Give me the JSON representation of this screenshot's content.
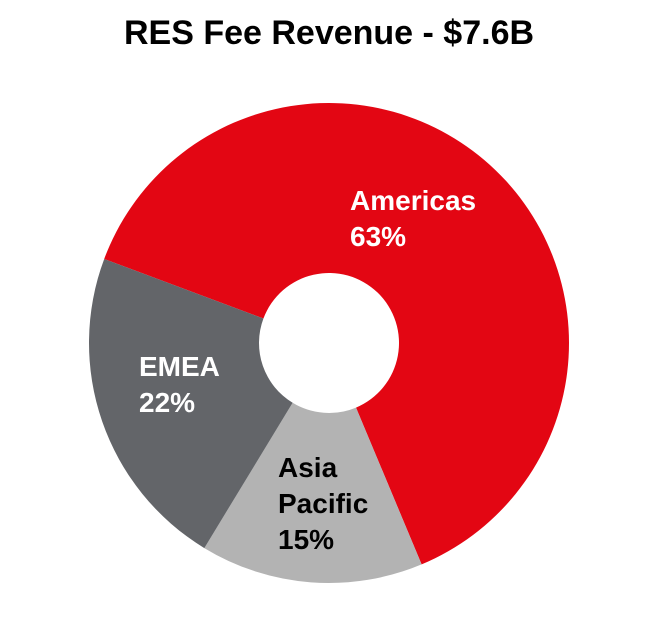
{
  "chart_data": {
    "type": "pie",
    "title": "RES Fee Revenue - $7.6B",
    "slices": [
      {
        "name": "Americas",
        "value": 63,
        "label_lines": [
          "Americas",
          "63%"
        ],
        "color": "#e30613",
        "label_color": "#ffffff"
      },
      {
        "name": "Asia Pacific",
        "value": 15,
        "label_lines": [
          "Asia",
          "Pacific",
          "15%"
        ],
        "color": "#b3b3b3",
        "label_color": "#000000"
      },
      {
        "name": "EMEA",
        "value": 22,
        "label_lines": [
          "EMEA",
          "22%"
        ],
        "color": "#636569",
        "label_color": "#ffffff"
      }
    ],
    "start_clockwise_from": "top, Americas first",
    "legend": "none"
  }
}
